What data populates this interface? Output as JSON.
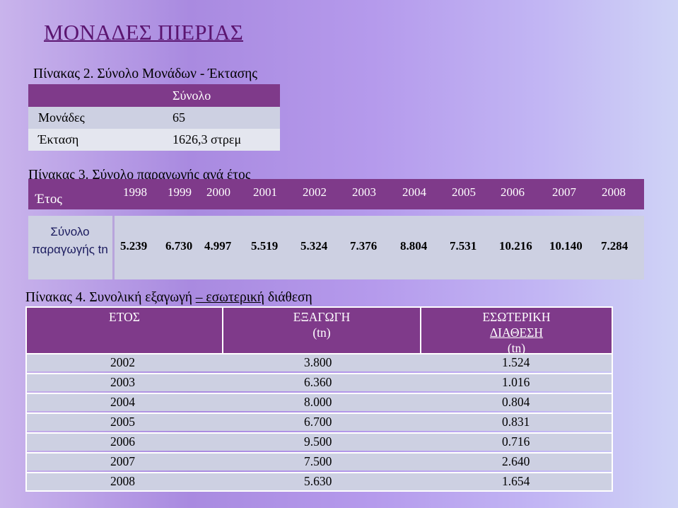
{
  "title": "ΜΟΝΑΔΕΣ  ΠΙΕΡΙΑΣ",
  "table2": {
    "caption": "Πίνακας 2. Σύνολο Μονάδων - Έκτασης",
    "header": "Σύνολο",
    "rows": [
      {
        "label": "Μονάδες",
        "value": "65"
      },
      {
        "label": "Έκταση",
        "value": "1626,3 στρεμ"
      }
    ]
  },
  "table3": {
    "caption": "Πίνακας 3. Σύνολο παραγωγής ανά έτος",
    "year_label": "Έτος",
    "years": [
      "1998",
      "1999",
      "2000",
      "2001",
      "2002",
      "2003",
      "2004",
      "2005",
      "2006",
      "2007",
      "2008"
    ],
    "production_label": "Σύνολο παραγωγής tn",
    "production": [
      "5.239",
      "6.730",
      "4.997",
      "5.519",
      "5.324",
      "7.376",
      "8.804",
      "7.531",
      "10.216",
      "10.140",
      "7.284"
    ]
  },
  "table4": {
    "caption_prefix": "Πίνακας 4. Συνολική εξαγωγή ",
    "caption_underlined": "– εσωτερική",
    "caption_suffix": " διάθεση",
    "headers": {
      "year": "ΕΤΟΣ",
      "export": "ΕΞΑΓΩΓΗ",
      "export_unit": "(tn)",
      "domestic_1": "ΕΣΩΤΕΡΙΚΗ",
      "domestic_2": "ΔΙΑΘΕΣΗ",
      "domestic_unit": "(tn)"
    },
    "rows": [
      {
        "year": "2002",
        "export": "3.800",
        "domestic": "1.524"
      },
      {
        "year": "2003",
        "export": "6.360",
        "domestic": "1.016"
      },
      {
        "year": "2004",
        "export": "8.000",
        "domestic": "0.804"
      },
      {
        "year": "2005",
        "export": "6.700",
        "domestic": "0.831"
      },
      {
        "year": "2006",
        "export": "9.500",
        "domestic": "0.716"
      },
      {
        "year": "2007",
        "export": "7.500",
        "domestic": "2.640"
      },
      {
        "year": "2008",
        "export": "5.630",
        "domestic": "1.654"
      }
    ]
  }
}
